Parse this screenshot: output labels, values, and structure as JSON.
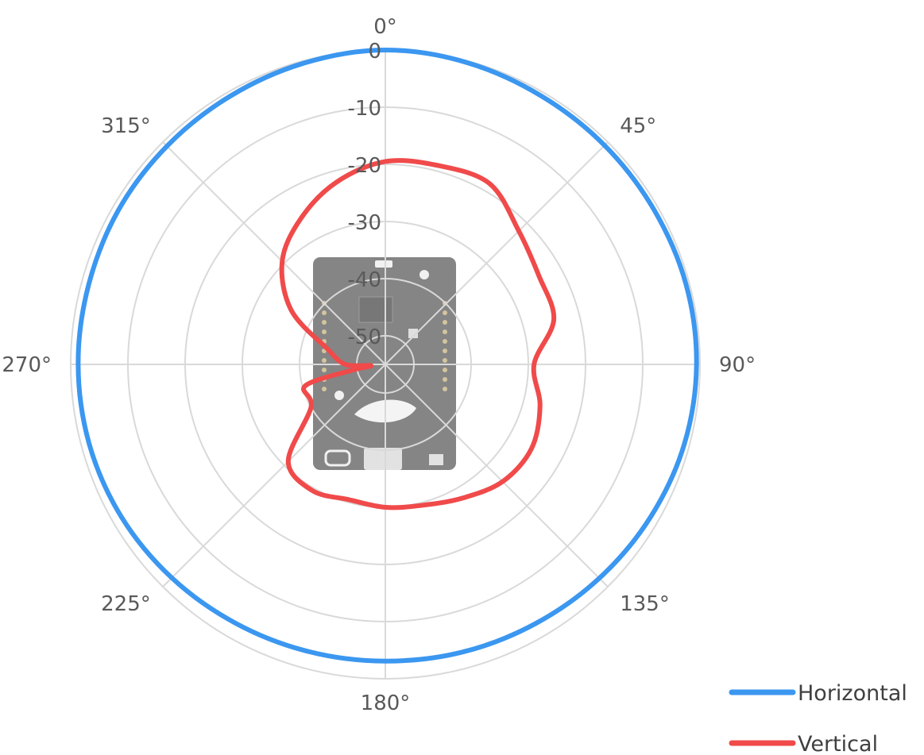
{
  "chart_data": {
    "type": "polar-line",
    "angle_unit": "degrees",
    "angle_labels": [
      "0°",
      "45°",
      "90°",
      "135°",
      "180°",
      "225°",
      "270°",
      "315°"
    ],
    "radial_ticks": [
      "0",
      "-10",
      "-20",
      "-30",
      "-40",
      "-50"
    ],
    "radial_range": [
      -55,
      0
    ],
    "grid": true,
    "legend_position": "bottom-right",
    "colors": {
      "Horizontal": "#3b97f0",
      "Vertical": "#f04a4a",
      "grid": "#d9d9d9"
    },
    "background_image": "EFR32BG22 Thunderboard board photo (Silicon Labs)",
    "series": [
      {
        "name": "Horizontal",
        "angles": [
          0,
          15,
          30,
          45,
          60,
          75,
          90,
          105,
          120,
          135,
          150,
          165,
          180,
          195,
          210,
          225,
          240,
          255,
          270,
          285,
          300,
          315,
          330,
          345,
          360
        ],
        "values": [
          0,
          -0.3,
          -0.7,
          -0.8,
          -0.8,
          -0.6,
          -0.6,
          -0.9,
          -1.5,
          -2.1,
          -2.6,
          -2.9,
          -3.1,
          -3.0,
          -2.7,
          -2.2,
          -1.7,
          -1.4,
          -1.3,
          -1.3,
          -1.1,
          -1.0,
          -0.8,
          -0.4,
          0
        ]
      },
      {
        "name": "Vertical",
        "angles": [
          0,
          15,
          30,
          45,
          60,
          75,
          90,
          105,
          120,
          135,
          150,
          165,
          180,
          195,
          210,
          225,
          240,
          255,
          260,
          265,
          270,
          285,
          300,
          315,
          330,
          345,
          360
        ],
        "values": [
          -19.5,
          -19,
          -18.5,
          -22,
          -24,
          -24.5,
          -29,
          -27,
          -25.5,
          -26,
          -28,
          -29.5,
          -30,
          -30.5,
          -29.5,
          -31,
          -40,
          -40.5,
          -49,
          -52.5,
          -48,
          -44.5,
          -36,
          -29.5,
          -25.5,
          -22,
          -19.5
        ]
      }
    ]
  }
}
